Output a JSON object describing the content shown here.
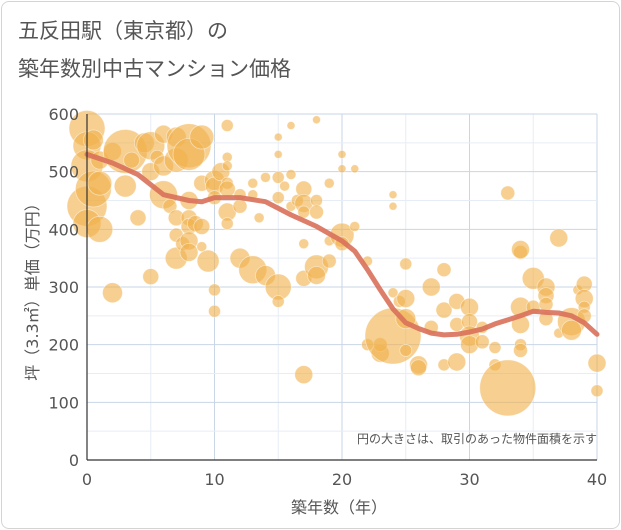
{
  "title_lines": [
    "五反田駅（東京都）の",
    "築年数別中古マンション価格"
  ],
  "chart_data": {
    "type": "scatter",
    "title": "五反田駅（東京都）の築年数別中古マンション価格",
    "xlabel": "築年数（年）",
    "ylabel": "坪（3.3㎡）単価（万円）",
    "xlim": [
      0,
      40
    ],
    "ylim": [
      0,
      600
    ],
    "xticks": [
      "0",
      "10",
      "20",
      "30",
      "40"
    ],
    "yticks": [
      "0",
      "100",
      "200",
      "300",
      "400",
      "500",
      "600"
    ],
    "grid": true,
    "annotation": "円の大きさは、取引のあった物件面積を示す",
    "colors": {
      "points": "#f0b24e",
      "trend": "#d9705a",
      "grid": "#c9d6e6",
      "text": "#555555"
    },
    "series": [
      {
        "kind": "bubbles",
        "points": [
          {
            "x": 0,
            "y": 575,
            "s": 18
          },
          {
            "x": 0,
            "y": 545,
            "s": 14
          },
          {
            "x": 0,
            "y": 510,
            "s": 16
          },
          {
            "x": 0,
            "y": 440,
            "s": 20
          },
          {
            "x": 0,
            "y": 410,
            "s": 14
          },
          {
            "x": 0.5,
            "y": 555,
            "s": 10
          },
          {
            "x": 0.5,
            "y": 470,
            "s": 18
          },
          {
            "x": 1,
            "y": 480,
            "s": 12
          },
          {
            "x": 1,
            "y": 400,
            "s": 13
          },
          {
            "x": 1,
            "y": 520,
            "s": 9
          },
          {
            "x": 2,
            "y": 290,
            "s": 10
          },
          {
            "x": 2,
            "y": 535,
            "s": 9
          },
          {
            "x": 3,
            "y": 535,
            "s": 22
          },
          {
            "x": 3,
            "y": 475,
            "s": 11
          },
          {
            "x": 3.5,
            "y": 520,
            "s": 8
          },
          {
            "x": 4,
            "y": 420,
            "s": 8
          },
          {
            "x": 4.5,
            "y": 550,
            "s": 10
          },
          {
            "x": 5,
            "y": 545,
            "s": 14
          },
          {
            "x": 5,
            "y": 500,
            "s": 9
          },
          {
            "x": 5,
            "y": 318,
            "s": 8
          },
          {
            "x": 5.5,
            "y": 525,
            "s": 7
          },
          {
            "x": 6,
            "y": 565,
            "s": 9
          },
          {
            "x": 6,
            "y": 510,
            "s": 10
          },
          {
            "x": 6,
            "y": 460,
            "s": 14
          },
          {
            "x": 6.5,
            "y": 440,
            "s": 7
          },
          {
            "x": 7,
            "y": 560,
            "s": 10
          },
          {
            "x": 7,
            "y": 520,
            "s": 12
          },
          {
            "x": 7,
            "y": 420,
            "s": 8
          },
          {
            "x": 7,
            "y": 390,
            "s": 7
          },
          {
            "x": 7,
            "y": 350,
            "s": 11
          },
          {
            "x": 7.5,
            "y": 375,
            "s": 7
          },
          {
            "x": 8,
            "y": 545,
            "s": 22
          },
          {
            "x": 8,
            "y": 530,
            "s": 16
          },
          {
            "x": 8,
            "y": 450,
            "s": 9
          },
          {
            "x": 8,
            "y": 420,
            "s": 8
          },
          {
            "x": 8,
            "y": 405,
            "s": 8
          },
          {
            "x": 8,
            "y": 380,
            "s": 9
          },
          {
            "x": 8,
            "y": 360,
            "s": 9
          },
          {
            "x": 8.5,
            "y": 410,
            "s": 8
          },
          {
            "x": 9,
            "y": 560,
            "s": 12
          },
          {
            "x": 9,
            "y": 480,
            "s": 8
          },
          {
            "x": 9,
            "y": 405,
            "s": 8
          },
          {
            "x": 9,
            "y": 370,
            "s": 5
          },
          {
            "x": 9.5,
            "y": 345,
            "s": 11
          },
          {
            "x": 10,
            "y": 485,
            "s": 10
          },
          {
            "x": 10,
            "y": 475,
            "s": 9
          },
          {
            "x": 10,
            "y": 455,
            "s": 7
          },
          {
            "x": 10,
            "y": 295,
            "s": 6
          },
          {
            "x": 10,
            "y": 258,
            "s": 6
          },
          {
            "x": 10.5,
            "y": 500,
            "s": 9
          },
          {
            "x": 11,
            "y": 580,
            "s": 6
          },
          {
            "x": 11,
            "y": 525,
            "s": 5
          },
          {
            "x": 11,
            "y": 510,
            "s": 5
          },
          {
            "x": 11,
            "y": 480,
            "s": 6
          },
          {
            "x": 11,
            "y": 470,
            "s": 8
          },
          {
            "x": 11,
            "y": 430,
            "s": 9
          },
          {
            "x": 11,
            "y": 410,
            "s": 6
          },
          {
            "x": 12,
            "y": 350,
            "s": 10
          },
          {
            "x": 12,
            "y": 440,
            "s": 7
          },
          {
            "x": 12,
            "y": 460,
            "s": 6
          },
          {
            "x": 13,
            "y": 330,
            "s": 14
          },
          {
            "x": 13,
            "y": 480,
            "s": 5
          },
          {
            "x": 13,
            "y": 460,
            "s": 5
          },
          {
            "x": 13.5,
            "y": 420,
            "s": 5
          },
          {
            "x": 14,
            "y": 320,
            "s": 10
          },
          {
            "x": 14,
            "y": 490,
            "s": 5
          },
          {
            "x": 15,
            "y": 300,
            "s": 13
          },
          {
            "x": 15,
            "y": 490,
            "s": 6
          },
          {
            "x": 15,
            "y": 275,
            "s": 6
          },
          {
            "x": 15,
            "y": 455,
            "s": 6
          },
          {
            "x": 15,
            "y": 560,
            "s": 4
          },
          {
            "x": 15,
            "y": 530,
            "s": 4
          },
          {
            "x": 15.5,
            "y": 475,
            "s": 5
          },
          {
            "x": 16,
            "y": 580,
            "s": 4
          },
          {
            "x": 16,
            "y": 440,
            "s": 5
          },
          {
            "x": 16,
            "y": 495,
            "s": 5
          },
          {
            "x": 16.5,
            "y": 450,
            "s": 6
          },
          {
            "x": 17,
            "y": 470,
            "s": 8
          },
          {
            "x": 17,
            "y": 445,
            "s": 9
          },
          {
            "x": 17,
            "y": 430,
            "s": 6
          },
          {
            "x": 17,
            "y": 375,
            "s": 5
          },
          {
            "x": 17,
            "y": 315,
            "s": 8
          },
          {
            "x": 17,
            "y": 148,
            "s": 9
          },
          {
            "x": 18,
            "y": 590,
            "s": 4
          },
          {
            "x": 18,
            "y": 450,
            "s": 6
          },
          {
            "x": 18,
            "y": 430,
            "s": 7
          },
          {
            "x": 18,
            "y": 335,
            "s": 12
          },
          {
            "x": 18,
            "y": 320,
            "s": 9
          },
          {
            "x": 19,
            "y": 480,
            "s": 5
          },
          {
            "x": 19,
            "y": 380,
            "s": 5
          },
          {
            "x": 19,
            "y": 345,
            "s": 7
          },
          {
            "x": 20,
            "y": 530,
            "s": 4
          },
          {
            "x": 20,
            "y": 390,
            "s": 12
          },
          {
            "x": 20,
            "y": 375,
            "s": 7
          },
          {
            "x": 20,
            "y": 505,
            "s": 4
          },
          {
            "x": 21,
            "y": 505,
            "s": 4
          },
          {
            "x": 21,
            "y": 405,
            "s": 5
          },
          {
            "x": 22,
            "y": 200,
            "s": 6
          },
          {
            "x": 22,
            "y": 345,
            "s": 5
          },
          {
            "x": 23,
            "y": 185,
            "s": 9
          },
          {
            "x": 23,
            "y": 200,
            "s": 7
          },
          {
            "x": 24,
            "y": 460,
            "s": 4
          },
          {
            "x": 24,
            "y": 440,
            "s": 4
          },
          {
            "x": 24,
            "y": 290,
            "s": 5
          },
          {
            "x": 24,
            "y": 215,
            "s": 28
          },
          {
            "x": 24.5,
            "y": 275,
            "s": 6
          },
          {
            "x": 25,
            "y": 340,
            "s": 6
          },
          {
            "x": 25,
            "y": 280,
            "s": 9
          },
          {
            "x": 25,
            "y": 245,
            "s": 10
          },
          {
            "x": 25,
            "y": 190,
            "s": 6
          },
          {
            "x": 26,
            "y": 165,
            "s": 9
          },
          {
            "x": 26,
            "y": 160,
            "s": 8
          },
          {
            "x": 27,
            "y": 230,
            "s": 7
          },
          {
            "x": 27,
            "y": 300,
            "s": 9
          },
          {
            "x": 28,
            "y": 330,
            "s": 7
          },
          {
            "x": 28,
            "y": 260,
            "s": 8
          },
          {
            "x": 28,
            "y": 165,
            "s": 6
          },
          {
            "x": 29,
            "y": 275,
            "s": 8
          },
          {
            "x": 29,
            "y": 235,
            "s": 7
          },
          {
            "x": 29,
            "y": 170,
            "s": 9
          },
          {
            "x": 30,
            "y": 265,
            "s": 9
          },
          {
            "x": 30,
            "y": 240,
            "s": 8
          },
          {
            "x": 30,
            "y": 215,
            "s": 10
          },
          {
            "x": 30,
            "y": 200,
            "s": 9
          },
          {
            "x": 31,
            "y": 230,
            "s": 6
          },
          {
            "x": 31,
            "y": 205,
            "s": 7
          },
          {
            "x": 32,
            "y": 195,
            "s": 6
          },
          {
            "x": 32,
            "y": 165,
            "s": 6
          },
          {
            "x": 33,
            "y": 463,
            "s": 7
          },
          {
            "x": 33,
            "y": 125,
            "s": 28
          },
          {
            "x": 34,
            "y": 360,
            "s": 7
          },
          {
            "x": 34,
            "y": 365,
            "s": 9
          },
          {
            "x": 34,
            "y": 265,
            "s": 10
          },
          {
            "x": 34,
            "y": 235,
            "s": 9
          },
          {
            "x": 34,
            "y": 200,
            "s": 6
          },
          {
            "x": 34,
            "y": 190,
            "s": 7
          },
          {
            "x": 35,
            "y": 315,
            "s": 11
          },
          {
            "x": 35,
            "y": 265,
            "s": 7
          },
          {
            "x": 36,
            "y": 300,
            "s": 9
          },
          {
            "x": 36,
            "y": 285,
            "s": 8
          },
          {
            "x": 36,
            "y": 270,
            "s": 7
          },
          {
            "x": 36,
            "y": 245,
            "s": 7
          },
          {
            "x": 37,
            "y": 385,
            "s": 9
          },
          {
            "x": 37,
            "y": 220,
            "s": 5
          },
          {
            "x": 38,
            "y": 240,
            "s": 14
          },
          {
            "x": 38,
            "y": 225,
            "s": 10
          },
          {
            "x": 38.5,
            "y": 295,
            "s": 5
          },
          {
            "x": 39,
            "y": 305,
            "s": 8
          },
          {
            "x": 39,
            "y": 280,
            "s": 9
          },
          {
            "x": 39,
            "y": 265,
            "s": 6
          },
          {
            "x": 39,
            "y": 250,
            "s": 7
          },
          {
            "x": 40,
            "y": 168,
            "s": 9
          },
          {
            "x": 40,
            "y": 120,
            "s": 6
          }
        ]
      },
      {
        "kind": "trend",
        "x": [
          0,
          2,
          4,
          6,
          8,
          9,
          10,
          12,
          14,
          16,
          18,
          20,
          21,
          22,
          23,
          24,
          25,
          26,
          27,
          28,
          29,
          30,
          31,
          32,
          33,
          34,
          35,
          36,
          37,
          38,
          39,
          40
        ],
        "y": [
          530,
          515,
          495,
          460,
          450,
          448,
          455,
          455,
          448,
          425,
          405,
          380,
          362,
          330,
          295,
          262,
          238,
          228,
          220,
          217,
          218,
          222,
          227,
          236,
          243,
          250,
          258,
          256,
          255,
          250,
          238,
          218
        ]
      }
    ]
  }
}
